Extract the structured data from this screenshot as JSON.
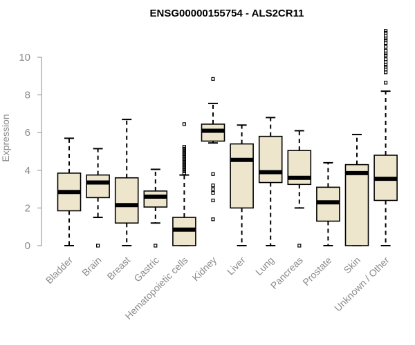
{
  "chart_data": {
    "type": "box",
    "title": "ENSG00000155754 - ALS2CR11",
    "xlabel": "",
    "ylabel": "Expression",
    "ylim": [
      0,
      11.5
    ],
    "yticks": [
      0,
      2,
      4,
      6,
      8,
      10
    ],
    "box_fill": "#ede6cc",
    "categories": [
      "Bladder",
      "Brain",
      "Breast",
      "Gastric",
      "Hematopoietic cells",
      "Kidney",
      "Liver",
      "Lung",
      "Pancreas",
      "Prostate",
      "Skin",
      "Unknown / Other"
    ],
    "boxes": [
      {
        "whisker_low": 0.0,
        "q1": 1.85,
        "median": 2.85,
        "q3": 3.85,
        "whisker_high": 5.7,
        "outliers": []
      },
      {
        "whisker_low": 1.5,
        "q1": 2.55,
        "median": 3.35,
        "q3": 3.75,
        "whisker_high": 5.15,
        "outliers": [
          0.0
        ]
      },
      {
        "whisker_low": 0.0,
        "q1": 1.2,
        "median": 2.15,
        "q3": 3.6,
        "whisker_high": 6.7,
        "outliers": []
      },
      {
        "whisker_low": 1.2,
        "q1": 2.05,
        "median": 2.6,
        "q3": 2.9,
        "whisker_high": 4.05,
        "outliers": [
          0.0
        ]
      },
      {
        "whisker_low": 0.0,
        "q1": 0.0,
        "median": 0.85,
        "q3": 1.5,
        "whisker_high": 3.75,
        "outliers": [
          3.85,
          3.95,
          4.05,
          4.15,
          4.25,
          4.35,
          4.45,
          4.55,
          4.65,
          4.75,
          4.85,
          4.95,
          5.05,
          5.15,
          5.25,
          6.45
        ]
      },
      {
        "whisker_low": 5.45,
        "q1": 5.55,
        "median": 6.1,
        "q3": 6.45,
        "whisker_high": 7.55,
        "outliers": [
          8.85,
          3.8,
          3.2,
          3.0,
          2.8,
          2.4,
          1.4
        ]
      },
      {
        "whisker_low": 0.0,
        "q1": 2.0,
        "median": 4.55,
        "q3": 5.4,
        "whisker_high": 6.4,
        "outliers": []
      },
      {
        "whisker_low": 0.0,
        "q1": 3.35,
        "median": 3.9,
        "q3": 5.8,
        "whisker_high": 6.8,
        "outliers": []
      },
      {
        "whisker_low": 2.0,
        "q1": 3.25,
        "median": 3.6,
        "q3": 5.05,
        "whisker_high": 6.1,
        "outliers": [
          0.0
        ]
      },
      {
        "whisker_low": 0.0,
        "q1": 1.3,
        "median": 2.3,
        "q3": 3.1,
        "whisker_high": 4.4,
        "outliers": []
      },
      {
        "whisker_low": 0.0,
        "q1": 0.0,
        "median": 3.85,
        "q3": 4.3,
        "whisker_high": 5.9,
        "outliers": []
      },
      {
        "whisker_low": 0.0,
        "q1": 2.4,
        "median": 3.55,
        "q3": 4.8,
        "whisker_high": 8.2,
        "outliers": [
          8.65,
          9.2,
          9.35,
          9.5,
          9.6,
          9.75,
          9.9,
          10.1,
          10.2,
          10.35,
          10.55,
          10.75,
          10.9,
          11.0,
          11.15,
          11.3,
          11.4
        ]
      }
    ]
  }
}
